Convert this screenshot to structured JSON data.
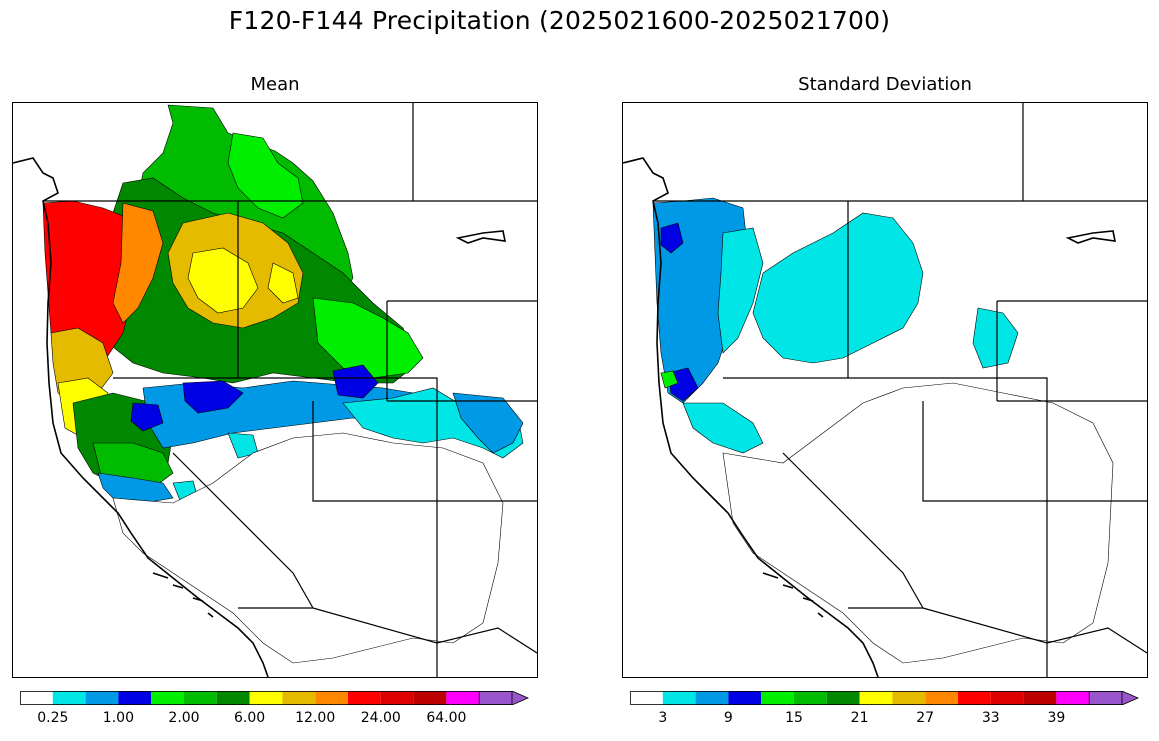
{
  "title": "F120-F144 Precipitation (2025021600-2025021700)",
  "panels": [
    {
      "id": "mean",
      "title": "Mean"
    },
    {
      "id": "std",
      "title": "Standard Deviation"
    }
  ],
  "colorbars": {
    "mean": {
      "colors": [
        "#ffffff",
        "#00e5e5",
        "#0099e5",
        "#0000e5",
        "#00ee00",
        "#00bb00",
        "#008800",
        "#ffff00",
        "#e5bb00",
        "#ff8800",
        "#ff0000",
        "#dd0000",
        "#bb0000",
        "#ff00ff",
        "#9955cc"
      ],
      "tick_labels": [
        "0.25",
        "1.00",
        "2.00",
        "6.00",
        "12.00",
        "24.00",
        "64.00"
      ],
      "extend": "max"
    },
    "std": {
      "colors": [
        "#ffffff",
        "#00e5e5",
        "#0099e5",
        "#0000e5",
        "#00ee00",
        "#00bb00",
        "#008800",
        "#ffff00",
        "#e5bb00",
        "#ff8800",
        "#ff0000",
        "#dd0000",
        "#bb0000",
        "#ff00ff",
        "#9955cc"
      ],
      "tick_labels": [
        "3",
        "9",
        "15",
        "21",
        "27",
        "33",
        "39"
      ],
      "extend": "max"
    }
  },
  "map_layers": {
    "mean": [
      {
        "color": "#00bb00",
        "region": "northern-rockies-basins"
      },
      {
        "color": "#008800",
        "region": "columbia-basin"
      },
      {
        "color": "#00ee00",
        "region": "montana-headwaters"
      },
      {
        "color": "#e5bb00",
        "region": "central-idaho"
      },
      {
        "color": "#ffff00",
        "region": "salmon-river"
      },
      {
        "color": "#ff0000",
        "region": "pacific-coast"
      },
      {
        "color": "#ff8800",
        "region": "cascades"
      },
      {
        "color": "#0099e5",
        "region": "great-basin-north"
      },
      {
        "color": "#0000e5",
        "region": "snake-river"
      },
      {
        "color": "#00e5e5",
        "region": "nevada-fringe"
      }
    ],
    "std": [
      {
        "color": "#00e5e5",
        "region": "interior-northwest"
      },
      {
        "color": "#0099e5",
        "region": "pacific-coast"
      },
      {
        "color": "#0000e5",
        "region": "olympic-peninsula"
      },
      {
        "color": "#00ee00",
        "region": "northern-california"
      }
    ]
  }
}
